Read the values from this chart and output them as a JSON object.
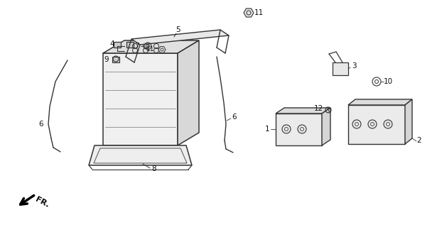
{
  "bg_color": "#ffffff",
  "line_color": "#333333",
  "figsize": [
    6.15,
    3.2
  ],
  "dpi": 100
}
